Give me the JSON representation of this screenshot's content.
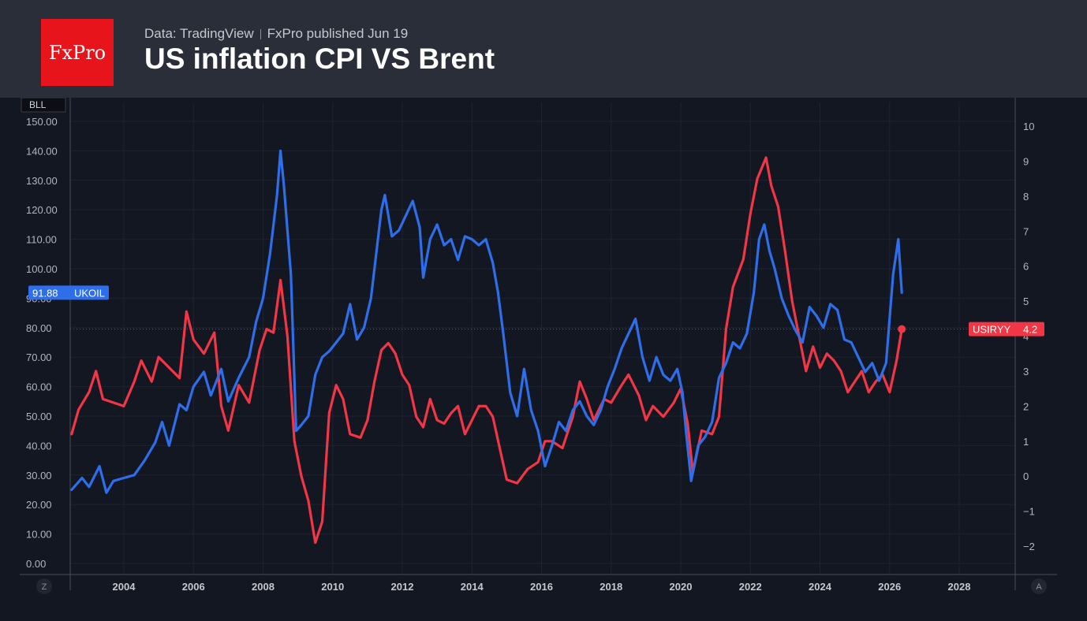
{
  "header": {
    "logo_text": "FxPro",
    "source": "Data: TradingView",
    "published": "FxPro published Jun 19",
    "title": "US inflation CPI VS Brent"
  },
  "colors": {
    "oil": "#2f6eea",
    "cpi": "#f23645",
    "grid": "#1f2330",
    "text": "#b2b5be"
  },
  "chart_data": {
    "type": "line",
    "left_axis": {
      "unit_label": "BLL",
      "min": 0,
      "max": 150,
      "ticks": [
        "0.00",
        "10.00",
        "20.00",
        "30.00",
        "40.00",
        "50.00",
        "60.00",
        "70.00",
        "80.00",
        "90.00",
        "100.00",
        "110.00",
        "120.00",
        "130.00",
        "140.00",
        "150.00"
      ]
    },
    "right_axis": {
      "min": -2,
      "max": 10,
      "ticks": [
        "−2",
        "−1",
        "0",
        "1",
        "2",
        "3",
        "4",
        "5",
        "6",
        "7",
        "8",
        "9",
        "10"
      ]
    },
    "x_axis": {
      "min": 2002.5,
      "max": 2029.5,
      "ticks": [
        "2004",
        "2006",
        "2008",
        "2010",
        "2012",
        "2014",
        "2016",
        "2018",
        "2020",
        "2022",
        "2024",
        "2026",
        "2028"
      ]
    },
    "corner_left": "Z",
    "corner_right": "A",
    "series": [
      {
        "name": "UKOIL",
        "axis": "left",
        "last_label": "91.88",
        "points": [
          [
            2002.5,
            25
          ],
          [
            2002.8,
            29
          ],
          [
            2003.0,
            26
          ],
          [
            2003.3,
            33
          ],
          [
            2003.5,
            24
          ],
          [
            2003.7,
            28
          ],
          [
            2004.0,
            29
          ],
          [
            2004.3,
            30
          ],
          [
            2004.6,
            35
          ],
          [
            2004.9,
            41
          ],
          [
            2005.1,
            48
          ],
          [
            2005.3,
            40
          ],
          [
            2005.6,
            54
          ],
          [
            2005.8,
            52
          ],
          [
            2006.0,
            60
          ],
          [
            2006.3,
            65
          ],
          [
            2006.5,
            57
          ],
          [
            2006.8,
            66
          ],
          [
            2007.0,
            55
          ],
          [
            2007.3,
            63
          ],
          [
            2007.6,
            70
          ],
          [
            2007.8,
            82
          ],
          [
            2008.0,
            90
          ],
          [
            2008.2,
            105
          ],
          [
            2008.4,
            125
          ],
          [
            2008.5,
            140
          ],
          [
            2008.6,
            128
          ],
          [
            2008.8,
            98
          ],
          [
            2008.95,
            45
          ],
          [
            2009.1,
            47
          ],
          [
            2009.3,
            50
          ],
          [
            2009.5,
            64
          ],
          [
            2009.7,
            70
          ],
          [
            2009.9,
            72
          ],
          [
            2010.1,
            75
          ],
          [
            2010.3,
            78
          ],
          [
            2010.5,
            88
          ],
          [
            2010.7,
            76
          ],
          [
            2010.9,
            80
          ],
          [
            2011.1,
            90
          ],
          [
            2011.3,
            110
          ],
          [
            2011.4,
            120
          ],
          [
            2011.5,
            125
          ],
          [
            2011.7,
            111
          ],
          [
            2011.9,
            113
          ],
          [
            2012.1,
            118
          ],
          [
            2012.3,
            123
          ],
          [
            2012.5,
            114
          ],
          [
            2012.6,
            97
          ],
          [
            2012.8,
            110
          ],
          [
            2013.0,
            115
          ],
          [
            2013.2,
            108
          ],
          [
            2013.4,
            110
          ],
          [
            2013.6,
            103
          ],
          [
            2013.8,
            111
          ],
          [
            2014.0,
            110
          ],
          [
            2014.2,
            108
          ],
          [
            2014.4,
            110
          ],
          [
            2014.6,
            102
          ],
          [
            2014.75,
            92
          ],
          [
            2014.9,
            78
          ],
          [
            2015.1,
            58
          ],
          [
            2015.3,
            50
          ],
          [
            2015.5,
            66
          ],
          [
            2015.7,
            52
          ],
          [
            2015.9,
            45
          ],
          [
            2016.1,
            33
          ],
          [
            2016.3,
            40
          ],
          [
            2016.5,
            48
          ],
          [
            2016.7,
            45
          ],
          [
            2016.9,
            52
          ],
          [
            2017.1,
            55
          ],
          [
            2017.3,
            50
          ],
          [
            2017.5,
            47
          ],
          [
            2017.7,
            52
          ],
          [
            2017.9,
            60
          ],
          [
            2018.1,
            66
          ],
          [
            2018.3,
            73
          ],
          [
            2018.5,
            78
          ],
          [
            2018.7,
            83
          ],
          [
            2018.9,
            70
          ],
          [
            2019.1,
            62
          ],
          [
            2019.3,
            70
          ],
          [
            2019.5,
            64
          ],
          [
            2019.7,
            62
          ],
          [
            2019.9,
            66
          ],
          [
            2020.05,
            58
          ],
          [
            2020.15,
            45
          ],
          [
            2020.3,
            28
          ],
          [
            2020.5,
            40
          ],
          [
            2020.7,
            43
          ],
          [
            2020.9,
            48
          ],
          [
            2021.1,
            63
          ],
          [
            2021.3,
            68
          ],
          [
            2021.5,
            75
          ],
          [
            2021.7,
            73
          ],
          [
            2021.9,
            78
          ],
          [
            2022.1,
            92
          ],
          [
            2022.25,
            110
          ],
          [
            2022.4,
            115
          ],
          [
            2022.55,
            106
          ],
          [
            2022.7,
            100
          ],
          [
            2022.9,
            90
          ],
          [
            2023.1,
            84
          ],
          [
            2023.3,
            79
          ],
          [
            2023.5,
            75
          ],
          [
            2023.7,
            87
          ],
          [
            2023.9,
            84
          ],
          [
            2024.1,
            80
          ],
          [
            2024.3,
            88
          ],
          [
            2024.5,
            86
          ],
          [
            2024.7,
            76
          ],
          [
            2024.9,
            75
          ],
          [
            2025.1,
            70
          ],
          [
            2025.3,
            65
          ],
          [
            2025.5,
            68
          ],
          [
            2025.7,
            62
          ],
          [
            2025.9,
            68
          ],
          [
            2026.1,
            98
          ],
          [
            2026.25,
            110
          ],
          [
            2026.35,
            91.88
          ]
        ]
      },
      {
        "name": "USIRYY",
        "axis": "right",
        "last_label": "4.2",
        "points": [
          [
            2002.5,
            1.2
          ],
          [
            2002.7,
            1.9
          ],
          [
            2003.0,
            2.4
          ],
          [
            2003.2,
            3.0
          ],
          [
            2003.4,
            2.2
          ],
          [
            2003.7,
            2.1
          ],
          [
            2004.0,
            2.0
          ],
          [
            2004.3,
            2.7
          ],
          [
            2004.5,
            3.3
          ],
          [
            2004.8,
            2.7
          ],
          [
            2005.0,
            3.4
          ],
          [
            2005.3,
            3.1
          ],
          [
            2005.6,
            2.8
          ],
          [
            2005.8,
            4.7
          ],
          [
            2006.0,
            3.9
          ],
          [
            2006.3,
            3.5
          ],
          [
            2006.6,
            4.1
          ],
          [
            2006.8,
            2.0
          ],
          [
            2007.0,
            1.3
          ],
          [
            2007.3,
            2.6
          ],
          [
            2007.6,
            2.1
          ],
          [
            2007.9,
            3.6
          ],
          [
            2008.1,
            4.2
          ],
          [
            2008.3,
            4.1
          ],
          [
            2008.5,
            5.6
          ],
          [
            2008.7,
            4.0
          ],
          [
            2008.9,
            1.0
          ],
          [
            2009.1,
            0.0
          ],
          [
            2009.3,
            -0.7
          ],
          [
            2009.5,
            -1.9
          ],
          [
            2009.7,
            -1.3
          ],
          [
            2009.9,
            1.8
          ],
          [
            2010.1,
            2.6
          ],
          [
            2010.3,
            2.2
          ],
          [
            2010.5,
            1.2
          ],
          [
            2010.8,
            1.1
          ],
          [
            2011.0,
            1.6
          ],
          [
            2011.2,
            2.7
          ],
          [
            2011.4,
            3.6
          ],
          [
            2011.6,
            3.8
          ],
          [
            2011.8,
            3.5
          ],
          [
            2012.0,
            2.9
          ],
          [
            2012.2,
            2.6
          ],
          [
            2012.4,
            1.7
          ],
          [
            2012.6,
            1.4
          ],
          [
            2012.8,
            2.2
          ],
          [
            2013.0,
            1.6
          ],
          [
            2013.2,
            1.5
          ],
          [
            2013.4,
            1.8
          ],
          [
            2013.6,
            2.0
          ],
          [
            2013.8,
            1.2
          ],
          [
            2014.0,
            1.6
          ],
          [
            2014.2,
            2.0
          ],
          [
            2014.4,
            2.0
          ],
          [
            2014.6,
            1.7
          ],
          [
            2014.8,
            0.8
          ],
          [
            2015.0,
            -0.1
          ],
          [
            2015.3,
            -0.2
          ],
          [
            2015.6,
            0.2
          ],
          [
            2015.9,
            0.4
          ],
          [
            2016.1,
            1.0
          ],
          [
            2016.3,
            1.0
          ],
          [
            2016.6,
            0.8
          ],
          [
            2016.9,
            1.7
          ],
          [
            2017.1,
            2.7
          ],
          [
            2017.3,
            2.2
          ],
          [
            2017.5,
            1.6
          ],
          [
            2017.8,
            2.2
          ],
          [
            2018.0,
            2.1
          ],
          [
            2018.3,
            2.6
          ],
          [
            2018.5,
            2.9
          ],
          [
            2018.8,
            2.3
          ],
          [
            2019.0,
            1.6
          ],
          [
            2019.2,
            2.0
          ],
          [
            2019.5,
            1.7
          ],
          [
            2019.8,
            2.1
          ],
          [
            2020.0,
            2.5
          ],
          [
            2020.2,
            1.5
          ],
          [
            2020.35,
            0.1
          ],
          [
            2020.6,
            1.3
          ],
          [
            2020.9,
            1.2
          ],
          [
            2021.1,
            1.7
          ],
          [
            2021.3,
            4.2
          ],
          [
            2021.5,
            5.4
          ],
          [
            2021.8,
            6.2
          ],
          [
            2022.0,
            7.5
          ],
          [
            2022.2,
            8.5
          ],
          [
            2022.45,
            9.1
          ],
          [
            2022.6,
            8.3
          ],
          [
            2022.8,
            7.7
          ],
          [
            2023.0,
            6.4
          ],
          [
            2023.2,
            5.0
          ],
          [
            2023.4,
            4.0
          ],
          [
            2023.6,
            3.0
          ],
          [
            2023.8,
            3.7
          ],
          [
            2024.0,
            3.1
          ],
          [
            2024.2,
            3.5
          ],
          [
            2024.4,
            3.3
          ],
          [
            2024.6,
            3.0
          ],
          [
            2024.8,
            2.4
          ],
          [
            2025.0,
            2.7
          ],
          [
            2025.2,
            3.0
          ],
          [
            2025.4,
            2.4
          ],
          [
            2025.6,
            2.7
          ],
          [
            2025.8,
            2.9
          ],
          [
            2026.0,
            2.4
          ],
          [
            2026.2,
            3.3
          ],
          [
            2026.35,
            4.2
          ]
        ]
      }
    ]
  }
}
